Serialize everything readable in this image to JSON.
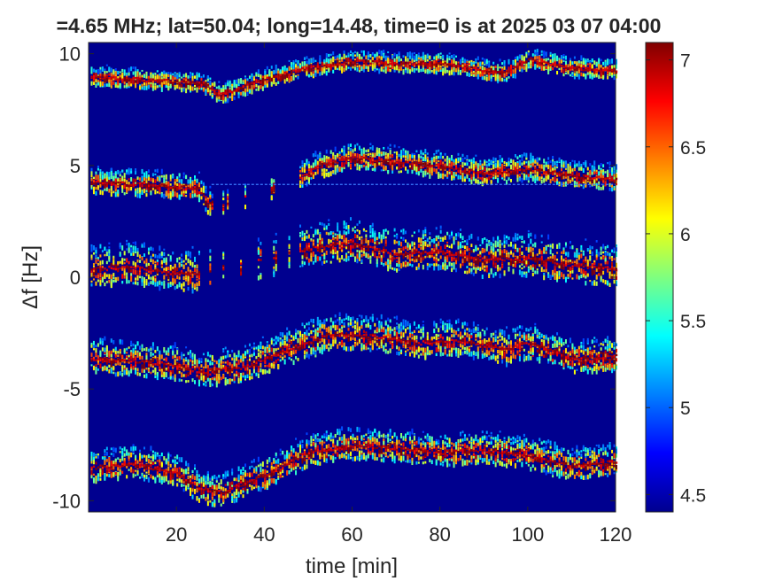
{
  "chart_data": {
    "type": "heatmap",
    "title": "=4.65 MHz;  lat=50.04; long=14.48, time=0 is at 2025 03 07 04:00",
    "xlabel": "time [min]",
    "ylabel": "Δf [Hz]",
    "xlim": [
      0,
      120
    ],
    "ylim": [
      -10.5,
      10.5
    ],
    "x_ticks": [
      20,
      40,
      60,
      80,
      100,
      120
    ],
    "y_ticks": [
      -10,
      -5,
      0,
      5,
      10
    ],
    "y_tick_labels": [
      "-10",
      "-5",
      "0",
      "5",
      "10"
    ],
    "colorbar": {
      "range": [
        4.4,
        7.1
      ],
      "ticks": [
        4.5,
        5,
        5.5,
        6,
        6.5,
        7
      ],
      "tick_labels": [
        "4.5",
        "5",
        "5.5",
        "6",
        "6.5",
        "7"
      ],
      "colormap": "jet"
    },
    "background_color": "#00008f",
    "traces": [
      {
        "name": "trace-1",
        "points": [
          [
            0,
            9.0
          ],
          [
            10,
            8.9
          ],
          [
            20,
            8.8
          ],
          [
            26,
            8.7
          ],
          [
            30,
            8.2
          ],
          [
            40,
            8.9
          ],
          [
            50,
            9.4
          ],
          [
            60,
            9.7
          ],
          [
            70,
            9.6
          ],
          [
            80,
            9.6
          ],
          [
            90,
            9.3
          ],
          [
            95,
            9.2
          ],
          [
            100,
            9.8
          ],
          [
            110,
            9.4
          ],
          [
            120,
            9.3
          ]
        ],
        "spread": 0.6
      },
      {
        "name": "trace-2",
        "points": [
          [
            0,
            4.3
          ],
          [
            10,
            4.2
          ],
          [
            20,
            4.1
          ],
          [
            25,
            4.0
          ],
          [
            27,
            3.4
          ],
          [
            30,
            3.2
          ],
          [
            48,
            4.5
          ],
          [
            52,
            5.0
          ],
          [
            60,
            5.4
          ],
          [
            70,
            5.2
          ],
          [
            80,
            5.0
          ],
          [
            90,
            4.7
          ],
          [
            100,
            4.9
          ],
          [
            110,
            4.6
          ],
          [
            120,
            4.4
          ]
        ],
        "spread": 0.8,
        "starts": 0,
        "gap": [
          28,
          48
        ]
      },
      {
        "name": "trace-3",
        "points": [
          [
            0,
            0.4
          ],
          [
            10,
            0.5
          ],
          [
            20,
            0.2
          ],
          [
            25,
            0.2
          ],
          [
            50,
            1.3
          ],
          [
            60,
            1.6
          ],
          [
            70,
            1.1
          ],
          [
            80,
            1.2
          ],
          [
            90,
            0.8
          ],
          [
            100,
            0.9
          ],
          [
            110,
            0.6
          ],
          [
            120,
            0.4
          ]
        ],
        "spread": 1.3,
        "gap": [
          25,
          48
        ]
      },
      {
        "name": "trace-4",
        "points": [
          [
            0,
            -3.6
          ],
          [
            10,
            -3.7
          ],
          [
            20,
            -3.9
          ],
          [
            25,
            -4.2
          ],
          [
            35,
            -4.0
          ],
          [
            45,
            -3.2
          ],
          [
            55,
            -2.5
          ],
          [
            65,
            -2.6
          ],
          [
            75,
            -2.9
          ],
          [
            85,
            -2.8
          ],
          [
            95,
            -3.2
          ],
          [
            100,
            -2.9
          ],
          [
            110,
            -3.6
          ],
          [
            120,
            -3.5
          ]
        ],
        "spread": 1.1
      },
      {
        "name": "trace-5",
        "points": [
          [
            0,
            -8.5
          ],
          [
            10,
            -8.3
          ],
          [
            20,
            -8.7
          ],
          [
            25,
            -9.4
          ],
          [
            30,
            -9.6
          ],
          [
            40,
            -8.8
          ],
          [
            50,
            -7.8
          ],
          [
            60,
            -7.5
          ],
          [
            70,
            -7.6
          ],
          [
            80,
            -7.8
          ],
          [
            90,
            -7.7
          ],
          [
            100,
            -7.9
          ],
          [
            110,
            -8.4
          ],
          [
            120,
            -8.2
          ]
        ],
        "spread": 1.0
      }
    ],
    "horizontal_line_y": 4.15
  }
}
